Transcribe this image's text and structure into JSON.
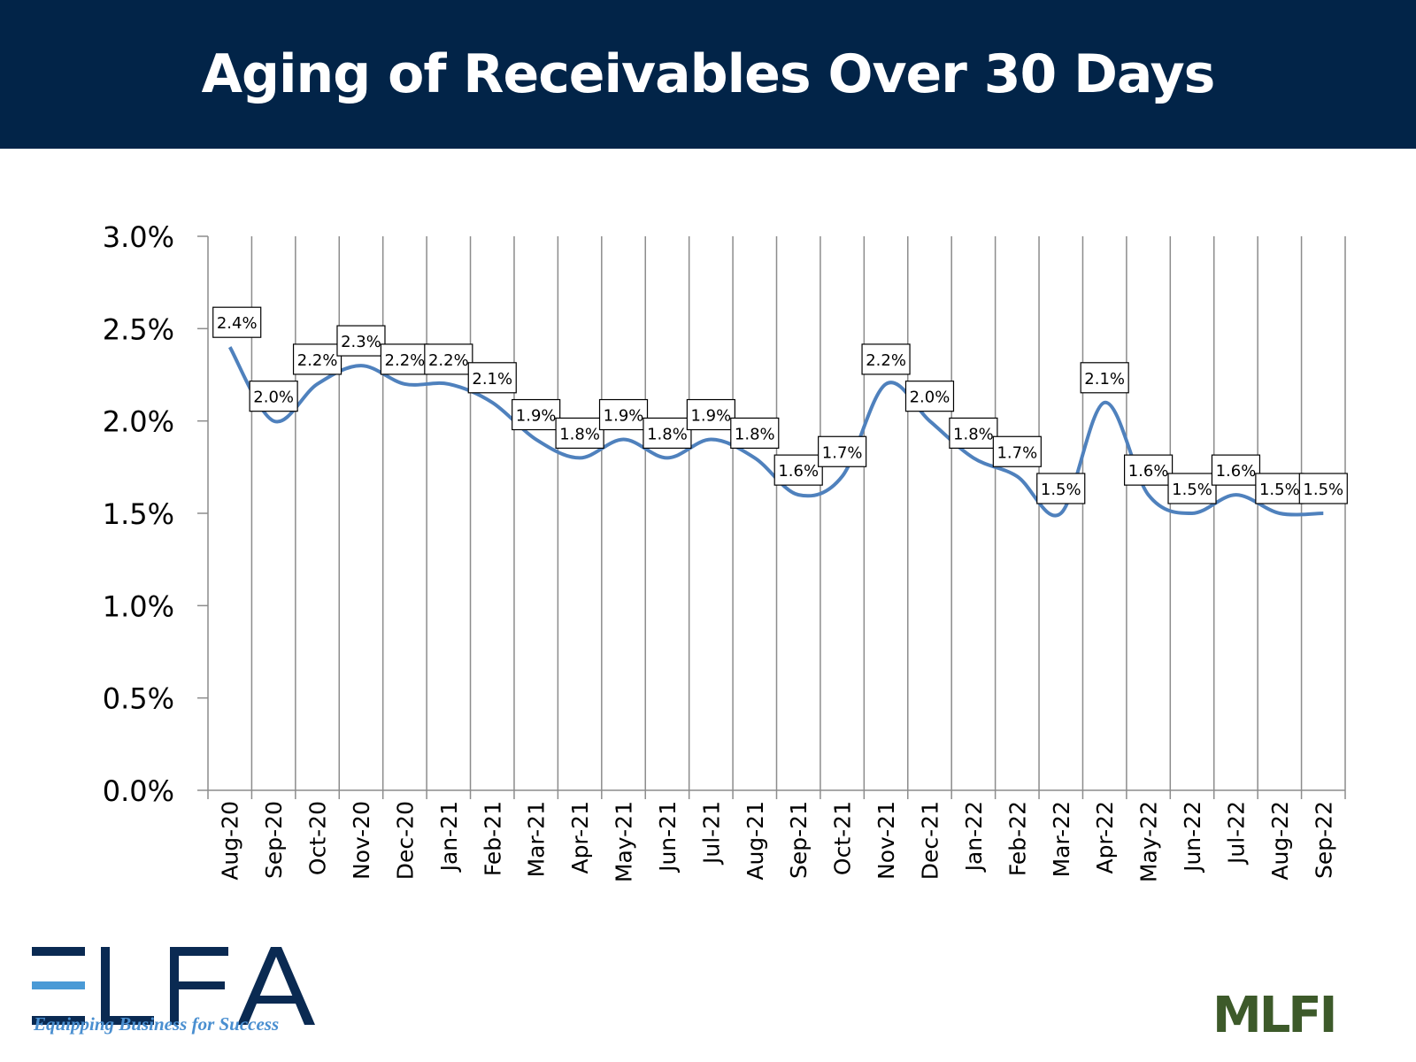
{
  "header": {
    "title": "Aging of Receivables Over 30 Days"
  },
  "chart_data": {
    "type": "line",
    "title": "Aging of Receivables Over 30 Days",
    "categories": [
      "Aug-20",
      "Sep-20",
      "Oct-20",
      "Nov-20",
      "Dec-20",
      "Jan-21",
      "Feb-21",
      "Mar-21",
      "Apr-21",
      "May-21",
      "Jun-21",
      "Jul-21",
      "Aug-21",
      "Sep-21",
      "Oct-21",
      "Nov-21",
      "Dec-21",
      "Jan-22",
      "Feb-22",
      "Mar-22",
      "Apr-22",
      "May-22",
      "Jun-22",
      "Jul-22",
      "Aug-22",
      "Sep-22"
    ],
    "values": [
      2.4,
      2.0,
      2.2,
      2.3,
      2.2,
      2.2,
      2.1,
      1.9,
      1.8,
      1.9,
      1.8,
      1.9,
      1.8,
      1.6,
      1.7,
      2.2,
      2.0,
      1.8,
      1.7,
      1.5,
      2.1,
      1.6,
      1.5,
      1.6,
      1.5,
      1.5
    ],
    "data_labels": [
      "2.4%",
      "2.0%",
      "2.2%",
      "2.3%",
      "2.2%",
      "2.2%",
      "2.1%",
      "1.9%",
      "1.8%",
      "1.9%",
      "1.8%",
      "1.9%",
      "1.8%",
      "1.6%",
      "1.7%",
      "2.2%",
      "2.0%",
      "1.8%",
      "1.7%",
      "1.5%",
      "2.1%",
      "1.6%",
      "1.5%",
      "1.6%",
      "1.5%",
      "1.5%"
    ],
    "ylim": [
      0,
      3.0
    ],
    "yticks": [
      "0.0%",
      "0.5%",
      "1.0%",
      "1.5%",
      "2.0%",
      "2.5%",
      "3.0%"
    ],
    "grid": "vertical",
    "smoothed": true,
    "line_color": "#4f81bd"
  },
  "logos": {
    "elfa": "ELFA",
    "elfa_tagline": "Equipping Business for Success",
    "mlfi": "MLFI"
  }
}
